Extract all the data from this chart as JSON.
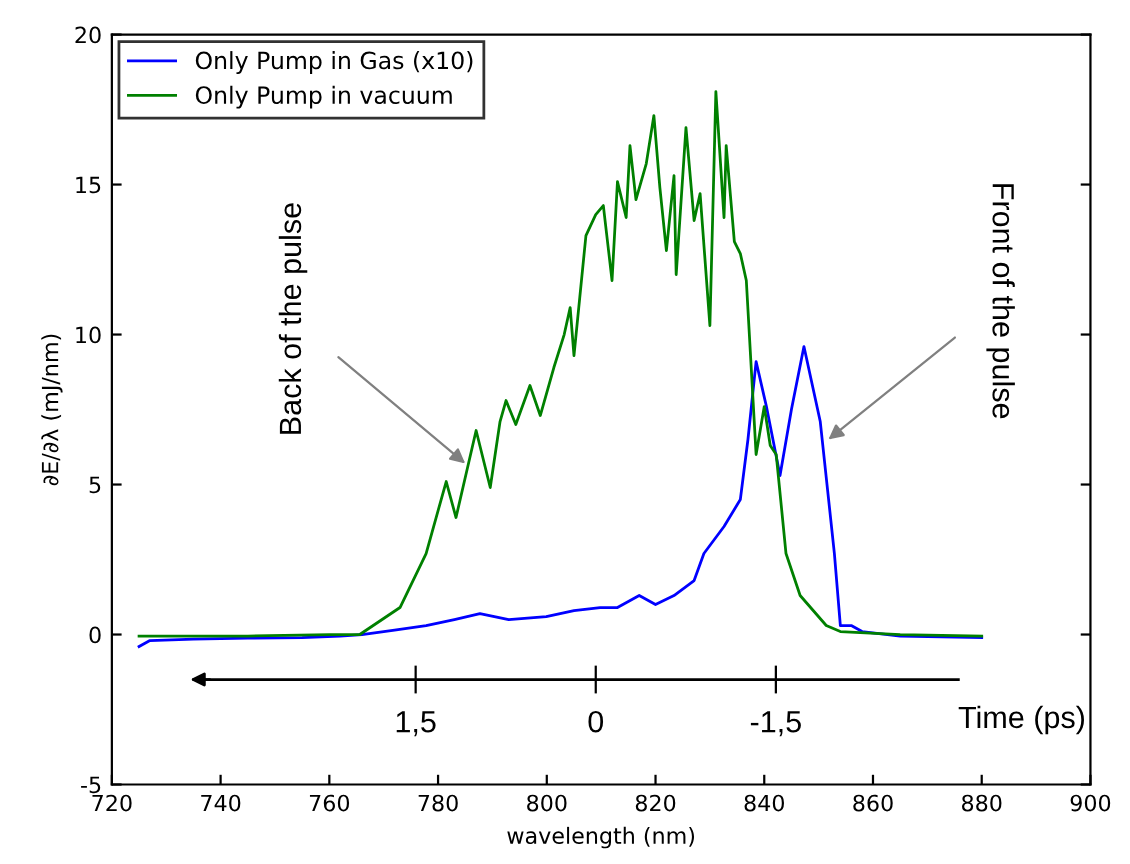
{
  "chart_data": {
    "type": "line",
    "xlabel": "wavelength (nm)",
    "ylabel": "∂E/∂λ (mJ/nm)",
    "xlim": [
      720,
      900
    ],
    "ylim": [
      -5,
      20
    ],
    "xticks": [
      720,
      740,
      760,
      780,
      800,
      820,
      840,
      860,
      880,
      900
    ],
    "yticks": [
      -5,
      0,
      5,
      10,
      15,
      20
    ],
    "grid": false,
    "legend": "top left",
    "series": [
      {
        "name": "Only Pump in Gas (x10)",
        "color": "#0000ff",
        "x": [
          725,
          727,
          735,
          745,
          755,
          762,
          766,
          772,
          777.8,
          783,
          787.7,
          793,
          799.9,
          805,
          809.8,
          813,
          817,
          820,
          823.4,
          827.1,
          828.9,
          832.6,
          835.6,
          837,
          838.5,
          840.4,
          842.9,
          845,
          847.3,
          850.3,
          852.9,
          854,
          856,
          858,
          865,
          880
        ],
        "values": [
          -0.4,
          -0.2,
          -0.15,
          -0.12,
          -0.1,
          -0.05,
          0,
          0.15,
          0.3,
          0.5,
          0.7,
          0.5,
          0.6,
          0.8,
          0.9,
          0.9,
          1.3,
          1.0,
          1.3,
          1.8,
          2.7,
          3.6,
          4.5,
          6.5,
          9.1,
          7.6,
          5.3,
          7.5,
          9.6,
          7.1,
          2.7,
          0.3,
          0.3,
          0.1,
          -0.05,
          -0.1
        ]
      },
      {
        "name": "Only Pump in vacuum",
        "color": "#008000",
        "x": [
          725,
          745,
          760,
          765.6,
          773,
          777.8,
          781.5,
          783.3,
          787,
          789.6,
          791.4,
          792.5,
          794.3,
          796.9,
          798.8,
          801.3,
          803.2,
          804.3,
          805,
          807.2,
          809,
          810.4,
          812,
          813,
          814.6,
          815.3,
          816.4,
          818.3,
          819.7,
          820.8,
          822,
          823.4,
          823.8,
          825.6,
          827.1,
          828.2,
          830,
          831.1,
          832.6,
          833,
          834.5,
          835.6,
          836.7,
          838.5,
          840,
          841.1,
          842.2,
          844,
          846.6,
          851.4,
          854,
          865,
          880
        ],
        "values": [
          -0.05,
          -0.05,
          0,
          0,
          0.9,
          2.7,
          5.1,
          3.9,
          6.8,
          4.9,
          7.1,
          7.8,
          7.0,
          8.3,
          7.3,
          8.9,
          10.0,
          10.9,
          9.3,
          13.3,
          14.0,
          14.3,
          11.8,
          15.1,
          13.9,
          16.3,
          14.5,
          15.7,
          17.3,
          14.9,
          12.8,
          15.3,
          12.0,
          16.9,
          13.8,
          14.7,
          10.3,
          18.1,
          13.9,
          16.3,
          13.1,
          12.7,
          11.8,
          6.0,
          7.6,
          6.3,
          6.0,
          2.7,
          1.3,
          0.3,
          0.1,
          0,
          -0.05
        ]
      }
    ],
    "annotations": [
      {
        "text": "Back of the pulse",
        "x": 785,
        "y": 5.7
      },
      {
        "text": "Front of the pulse",
        "x": 851.8,
        "y": 6.5
      }
    ],
    "x2label": "Time (ps)",
    "x2lim": [
      4.03,
      -4.12
    ],
    "x2ticks": [
      {
        "value": 1.5,
        "label": "1,5"
      },
      {
        "value": 0,
        "label": "0"
      },
      {
        "value": -1.5,
        "label": "-1,5"
      }
    ]
  }
}
